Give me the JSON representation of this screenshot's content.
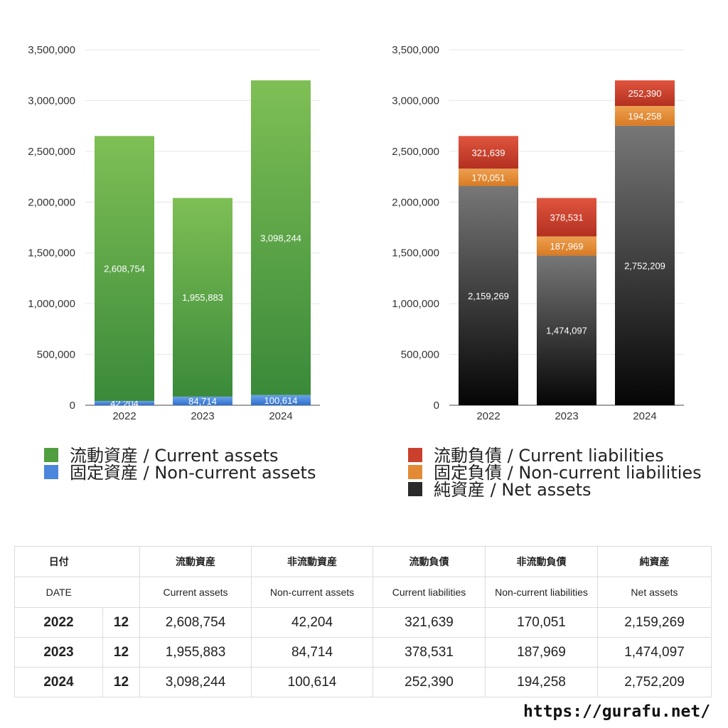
{
  "chart_data": [
    {
      "type": "bar",
      "stacked": true,
      "categories": [
        "2022",
        "2023",
        "2024"
      ],
      "ylim": [
        0,
        3500000
      ],
      "yticks": [
        "0",
        "500,000",
        "1,000,000",
        "1,500,000",
        "2,000,000",
        "2,500,000",
        "3,000,000",
        "3,500,000"
      ],
      "ytick_values": [
        0,
        500000,
        1000000,
        1500000,
        2000000,
        2500000,
        3000000,
        3500000
      ],
      "series": [
        {
          "name": "固定資産 / Non-current assets",
          "values": [
            42204,
            84714,
            100614
          ],
          "labels": [
            "42,204",
            "84,714",
            "100,614"
          ],
          "color_top": "#6aa3e8",
          "color_bottom": "#2f6fcf"
        },
        {
          "name": "流動資産 / Current assets",
          "values": [
            2608754,
            1955883,
            3098244
          ],
          "labels": [
            "2,608,754",
            "1,955,883",
            "3,098,244"
          ],
          "color_top": "#7fbf55",
          "color_bottom": "#3a8a3a"
        }
      ],
      "legend": [
        {
          "label": "流動資産 / Current assets",
          "color": "#4f9e3f"
        },
        {
          "label": "固定資産 / Non-current assets",
          "color": "#4a86dc"
        }
      ]
    },
    {
      "type": "bar",
      "stacked": true,
      "categories": [
        "2022",
        "2023",
        "2024"
      ],
      "ylim": [
        0,
        3500000
      ],
      "yticks": [
        "0",
        "500,000",
        "1,000,000",
        "1,500,000",
        "2,000,000",
        "2,500,000",
        "3,000,000",
        "3,500,000"
      ],
      "ytick_values": [
        0,
        500000,
        1000000,
        1500000,
        2000000,
        2500000,
        3000000,
        3500000
      ],
      "series": [
        {
          "name": "純資産 / Net assets",
          "values": [
            2159269,
            1474097,
            2752209
          ],
          "labels": [
            "2,159,269",
            "1,474,097",
            "2,752,209"
          ],
          "color_top": "#777777",
          "color_bottom": "#050505"
        },
        {
          "name": "固定負債 / Non-current liabilities",
          "values": [
            170051,
            187969,
            194258
          ],
          "labels": [
            "170,051",
            "187,969",
            "194,258"
          ],
          "color_top": "#eda050",
          "color_bottom": "#d97a22"
        },
        {
          "name": "流動負債 / Current liabilities",
          "values": [
            321639,
            378531,
            252390
          ],
          "labels": [
            "321,639",
            "378,531",
            "252,390"
          ],
          "color_top": "#e0553f",
          "color_bottom": "#b3301f"
        }
      ],
      "legend": [
        {
          "label": "流動負債 / Current liabilities",
          "color": "#c9402c"
        },
        {
          "label": "固定負債 / Non-current liabilities",
          "color": "#e38a35"
        },
        {
          "label": "純資産 / Net assets",
          "color": "#2a2a2a"
        }
      ]
    }
  ],
  "table": {
    "headers_ja": [
      "日付",
      "流動資産",
      "非流動資産",
      "流動負債",
      "非流動負債",
      "純資産"
    ],
    "headers_en": [
      "DATE",
      "Current assets",
      "Non-current assets",
      "Current liabilities",
      "Non-current liabilities",
      "Net assets"
    ],
    "rows": [
      {
        "year": "2022",
        "month": "12",
        "values": [
          "2,608,754",
          "42,204",
          "321,639",
          "170,051",
          "2,159,269"
        ]
      },
      {
        "year": "2023",
        "month": "12",
        "values": [
          "1,955,883",
          "84,714",
          "378,531",
          "187,969",
          "1,474,097"
        ]
      },
      {
        "year": "2024",
        "month": "12",
        "values": [
          "3,098,244",
          "100,614",
          "252,390",
          "194,258",
          "2,752,209"
        ]
      }
    ]
  },
  "footer": {
    "url": "https://gurafu.net/"
  }
}
